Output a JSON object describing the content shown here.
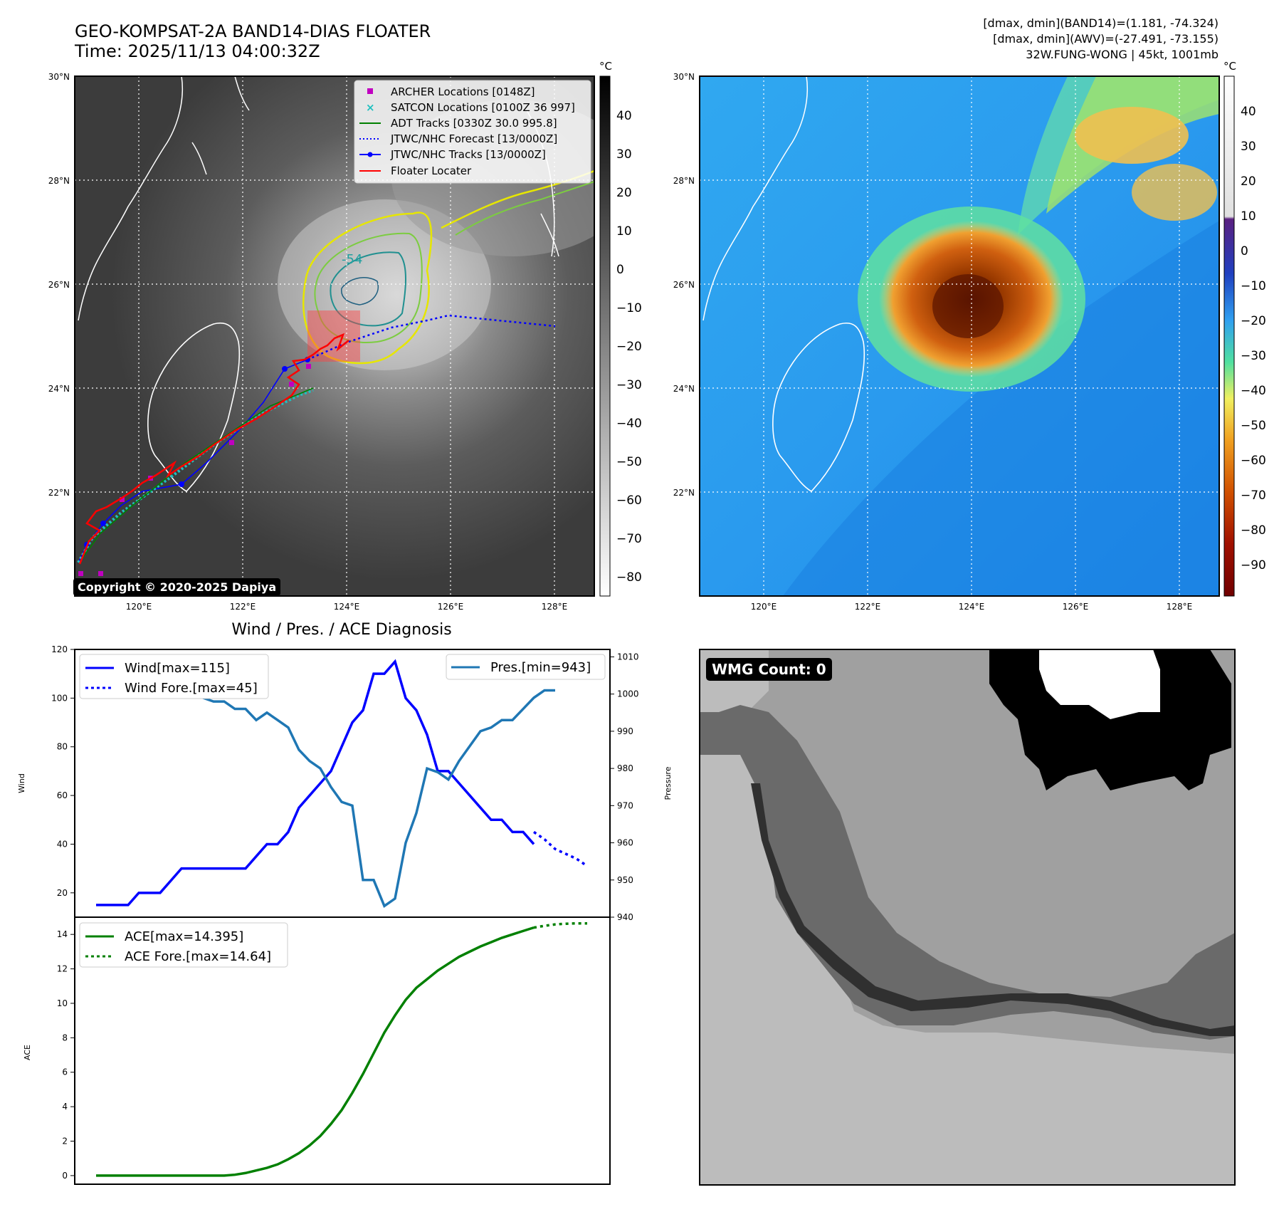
{
  "header": {
    "title": "GEO-KOMPSAT-2A BAND14-DIAS FLOATER",
    "time": "Time: 2025/11/13 04:00:32Z",
    "dmax_band14": "[dmax, dmin](BAND14)=(1.181, -74.324)",
    "dmax_awv": "[dmax, dmin](AWV)=(-27.491, -73.155)",
    "storm_info": "32W.FUNG-WONG | 45kt, 1001mb"
  },
  "map": {
    "lat_labels": [
      "30°N",
      "28°N",
      "26°N",
      "24°N",
      "22°N"
    ],
    "lon_labels": [
      "120°E",
      "122°E",
      "124°E",
      "126°E",
      "128°E"
    ],
    "copyright": "Copyright © 2020-2025 Dapiya",
    "contour_label": "-54",
    "legend": [
      {
        "label": "ARCHER Locations [0148Z]",
        "color": "#c000c0"
      },
      {
        "label": "SATCON Locations [0100Z 36 997]",
        "color": "#20c0c0"
      },
      {
        "label": "ADT Tracks [0330Z 30.0 995.8]",
        "color": "#008000"
      },
      {
        "label": "JTWC/NHC Forecast [13/0000Z]",
        "color": "#0000ff"
      },
      {
        "label": "JTWC/NHC Tracks [13/0000Z]",
        "color": "#0000ff"
      },
      {
        "label": "Floater Locater",
        "color": "#ff0000"
      }
    ]
  },
  "colorbar_gray": {
    "unit": "°C",
    "ticks": [
      "40",
      "30",
      "20",
      "10",
      "0",
      "−10",
      "−20",
      "−30",
      "−40",
      "−50",
      "−60",
      "−70",
      "−80"
    ]
  },
  "colorbar_color": {
    "unit": "°C",
    "ticks": [
      "40",
      "30",
      "20",
      "10",
      "0",
      "−10",
      "−20",
      "−30",
      "−40",
      "−50",
      "−60",
      "−70",
      "−80",
      "−90"
    ]
  },
  "wmg": {
    "label": "WMG Count: 0"
  },
  "chart_data": [
    {
      "type": "line",
      "title": "Wind / Pres. / ACE Diagnosis",
      "xlabel": "",
      "ylabel": "Wind",
      "ylabel_right": "Pressure",
      "ylim": [
        10,
        120
      ],
      "ylim_right": [
        940,
        1012
      ],
      "yticks": [
        20,
        40,
        60,
        80,
        100,
        120
      ],
      "yticks_right": [
        940,
        950,
        960,
        970,
        980,
        990,
        1000,
        1010
      ],
      "series": [
        {
          "name": "Wind[max=115]",
          "color": "#0000ff",
          "style": "solid",
          "x": [
            0,
            1,
            2,
            3,
            4,
            5,
            6,
            7,
            8,
            9,
            10,
            11,
            12,
            13,
            14,
            15,
            16,
            17,
            18,
            19,
            20,
            21,
            22,
            23,
            24,
            25,
            26,
            27,
            28,
            29,
            30,
            31,
            32,
            33,
            34,
            35,
            36,
            37,
            38,
            39,
            40,
            41
          ],
          "values": [
            15,
            15,
            15,
            15,
            20,
            20,
            20,
            25,
            30,
            30,
            30,
            30,
            30,
            30,
            30,
            35,
            40,
            40,
            45,
            55,
            60,
            65,
            70,
            80,
            90,
            95,
            110,
            110,
            115,
            100,
            95,
            85,
            70,
            70,
            65,
            60,
            55,
            50,
            50,
            45,
            45,
            40
          ]
        },
        {
          "name": "Wind Fore.[max=45]",
          "color": "#0000ff",
          "style": "dotted",
          "x": [
            41,
            42,
            43,
            44,
            45,
            46
          ],
          "values": [
            45,
            42,
            38,
            36,
            34,
            31
          ]
        },
        {
          "name": "Pres.[min=943]",
          "color": "#1f77b4",
          "style": "solid",
          "x": [
            0,
            1,
            2,
            3,
            4,
            5,
            6,
            7,
            8,
            9,
            10,
            11,
            12,
            13,
            14,
            15,
            16,
            17,
            18,
            19,
            20,
            21,
            22,
            23,
            24,
            25,
            26,
            27,
            28,
            29,
            30,
            31,
            32,
            33,
            34,
            35,
            36,
            37,
            38,
            39,
            40,
            41,
            42,
            43
          ],
          "values": [
            1008,
            1006,
            1006,
            1006,
            1005,
            1004,
            1000,
            1001,
            1001,
            1000,
            999,
            998,
            998,
            996,
            996,
            993,
            995,
            993,
            991,
            985,
            982,
            980,
            975,
            971,
            970,
            950,
            950,
            943,
            945,
            960,
            968,
            980,
            979,
            977,
            982,
            986,
            990,
            991,
            993,
            993,
            996,
            999,
            1001,
            1001
          ]
        }
      ]
    },
    {
      "type": "line",
      "title": "",
      "ylabel": "ACE",
      "ylim": [
        -0.5,
        15
      ],
      "yticks": [
        0,
        2,
        4,
        6,
        8,
        10,
        12,
        14
      ],
      "series": [
        {
          "name": "ACE[max=14.395]",
          "color": "#008000",
          "style": "solid",
          "x": [
            0,
            1,
            2,
            3,
            4,
            5,
            6,
            7,
            8,
            9,
            10,
            11,
            12,
            13,
            14,
            15,
            16,
            17,
            18,
            19,
            20,
            21,
            22,
            23,
            24,
            25,
            26,
            27,
            28,
            29,
            30,
            31,
            32,
            33,
            34,
            35,
            36,
            37,
            38,
            39,
            40,
            41
          ],
          "values": [
            0,
            0,
            0,
            0,
            0,
            0,
            0,
            0,
            0,
            0,
            0,
            0,
            0,
            0.05,
            0.15,
            0.3,
            0.45,
            0.65,
            0.95,
            1.3,
            1.75,
            2.3,
            3.0,
            3.8,
            4.8,
            5.9,
            7.1,
            8.3,
            9.3,
            10.2,
            10.9,
            11.4,
            11.9,
            12.3,
            12.7,
            13.0,
            13.3,
            13.55,
            13.8,
            14.0,
            14.2,
            14.395
          ]
        },
        {
          "name": "ACE Fore.[max=14.64]",
          "color": "#008000",
          "style": "dotted",
          "x": [
            41,
            42,
            43,
            44,
            45,
            46
          ],
          "values": [
            14.395,
            14.5,
            14.58,
            14.62,
            14.64,
            14.64
          ]
        }
      ]
    }
  ]
}
